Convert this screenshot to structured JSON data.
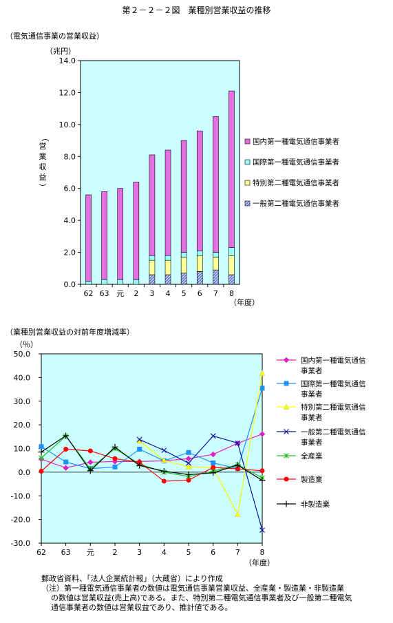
{
  "page": {
    "title": "第２－２－２図　業種別営業収益の推移",
    "source": "郵政省資料、「法人企業統計報」（大蔵省）により作成",
    "note_lines": [
      "（注）第一種電気通信事業者の数値は電気通信事業営業収益、全産業・製造業・非製造業",
      "の数値は営業収益(売上高)である。また、特別第二種電気通信事業者及び一般第二種電気",
      "通信事業者の数値は営業収益であり、推計値である。"
    ]
  },
  "chart_data": [
    {
      "type": "bar",
      "stacked": true,
      "section_title": "（電気通信事業の営業収益）",
      "unit_label": "（兆円）",
      "ylabel": "営業収益",
      "xlabel": "（年度）",
      "ylim": [
        0,
        14
      ],
      "yticks": [
        "0.0",
        "2.0",
        "4.0",
        "6.0",
        "8.0",
        "10.0",
        "12.0",
        "14.0"
      ],
      "categories": [
        "62",
        "63",
        "元",
        "2",
        "3",
        "4",
        "5",
        "6",
        "7",
        "8"
      ],
      "legend_position": "right",
      "series": [
        {
          "name": "一般第二種電気通信事業者",
          "color": "#6a7fd0",
          "pattern": "hatch",
          "values": [
            0,
            0,
            0,
            0,
            0.6,
            0.6,
            0.7,
            0.8,
            0.9,
            0.6
          ]
        },
        {
          "name": "特別第二種電気通信事業者",
          "color": "#ffff99",
          "values": [
            0,
            0,
            0,
            0,
            0.9,
            0.9,
            1.0,
            1.0,
            0.8,
            1.2
          ]
        },
        {
          "name": "国際第一種電気通信事業者",
          "color": "#99ffff",
          "values": [
            0.2,
            0.3,
            0.3,
            0.3,
            0.3,
            0.3,
            0.3,
            0.3,
            0.3,
            0.5
          ]
        },
        {
          "name": "国内第一種電気通信事業者",
          "color": "#e46fe0",
          "values": [
            5.4,
            5.5,
            5.7,
            6.1,
            6.3,
            6.6,
            7.0,
            7.5,
            8.5,
            9.8
          ]
        }
      ],
      "legend_order": [
        "国内第一種電気通信事業者",
        "国際第一種電気通信事業者",
        "特別第二種電気通信事業者",
        "一般第二種電気通信事業者"
      ]
    },
    {
      "type": "line",
      "section_title": "（業種別営業収益の対前年度増減率）",
      "unit_label": "（％）",
      "xlabel": "（年度）",
      "ylim": [
        -30,
        50
      ],
      "yticks": [
        "-30.0",
        "-20.0",
        "-10.0",
        "0.0",
        "10.0",
        "20.0",
        "30.0",
        "40.0",
        "50.0"
      ],
      "categories": [
        "62",
        "63",
        "元",
        "2",
        "3",
        "4",
        "5",
        "6",
        "7",
        "8"
      ],
      "legend_position": "right",
      "series": [
        {
          "name": "国内第一種電気通信事業者",
          "color": "#e020c0",
          "marker": "diamond",
          "values": [
            5.5,
            1.8,
            4.2,
            4.5,
            4.5,
            4.8,
            5.7,
            7.5,
            12.2,
            16.1
          ]
        },
        {
          "name": "国際第一種電気通信事業者",
          "color": "#1e90ff",
          "marker": "square",
          "values": [
            10.8,
            4.3,
            1.5,
            2.2,
            9.7,
            4.8,
            8.3,
            3.9,
            1.5,
            35.5
          ]
        },
        {
          "name": "特別第二種電気通信事業者",
          "color": "#ffff00",
          "marker": "triangle",
          "values": [
            null,
            null,
            null,
            null,
            13.2,
            5.0,
            2.3,
            1.9,
            -17.8,
            41.9
          ]
        },
        {
          "name": "一般第二種電気通信事業者",
          "color": "#1010a0",
          "marker": "x",
          "values": [
            null,
            null,
            null,
            null,
            13.8,
            9.2,
            3.8,
            15.3,
            12.3,
            -24.5
          ]
        },
        {
          "name": "全産業",
          "color": "#20c020",
          "marker": "asterisk",
          "values": [
            6.0,
            15.2,
            1.5,
            10.0,
            3.4,
            0.0,
            -1.8,
            0.4,
            3.2,
            -2.4
          ]
        },
        {
          "name": "製造業",
          "color": "#ff0000",
          "marker": "circle",
          "values": [
            0.4,
            9.7,
            9.0,
            5.7,
            4.2,
            -3.8,
            -3.4,
            2.0,
            1.4,
            0.6
          ]
        },
        {
          "name": "非製造業",
          "color": "#000000",
          "marker": "plus",
          "values": [
            8.5,
            15.4,
            0.6,
            10.6,
            2.8,
            0.4,
            -1.0,
            -0.3,
            3.0,
            -3.5
          ]
        }
      ],
      "legend_labels": [
        [
          "国内第一種電気通信",
          "事業者"
        ],
        [
          "国際第一種電気通信",
          "事業者"
        ],
        [
          "特別第二種電気通信",
          "事業者"
        ],
        [
          "一般第二種電気通信",
          "事業者"
        ],
        [
          "全産業"
        ],
        [
          "製造業"
        ],
        [
          "非製造業"
        ]
      ]
    }
  ]
}
